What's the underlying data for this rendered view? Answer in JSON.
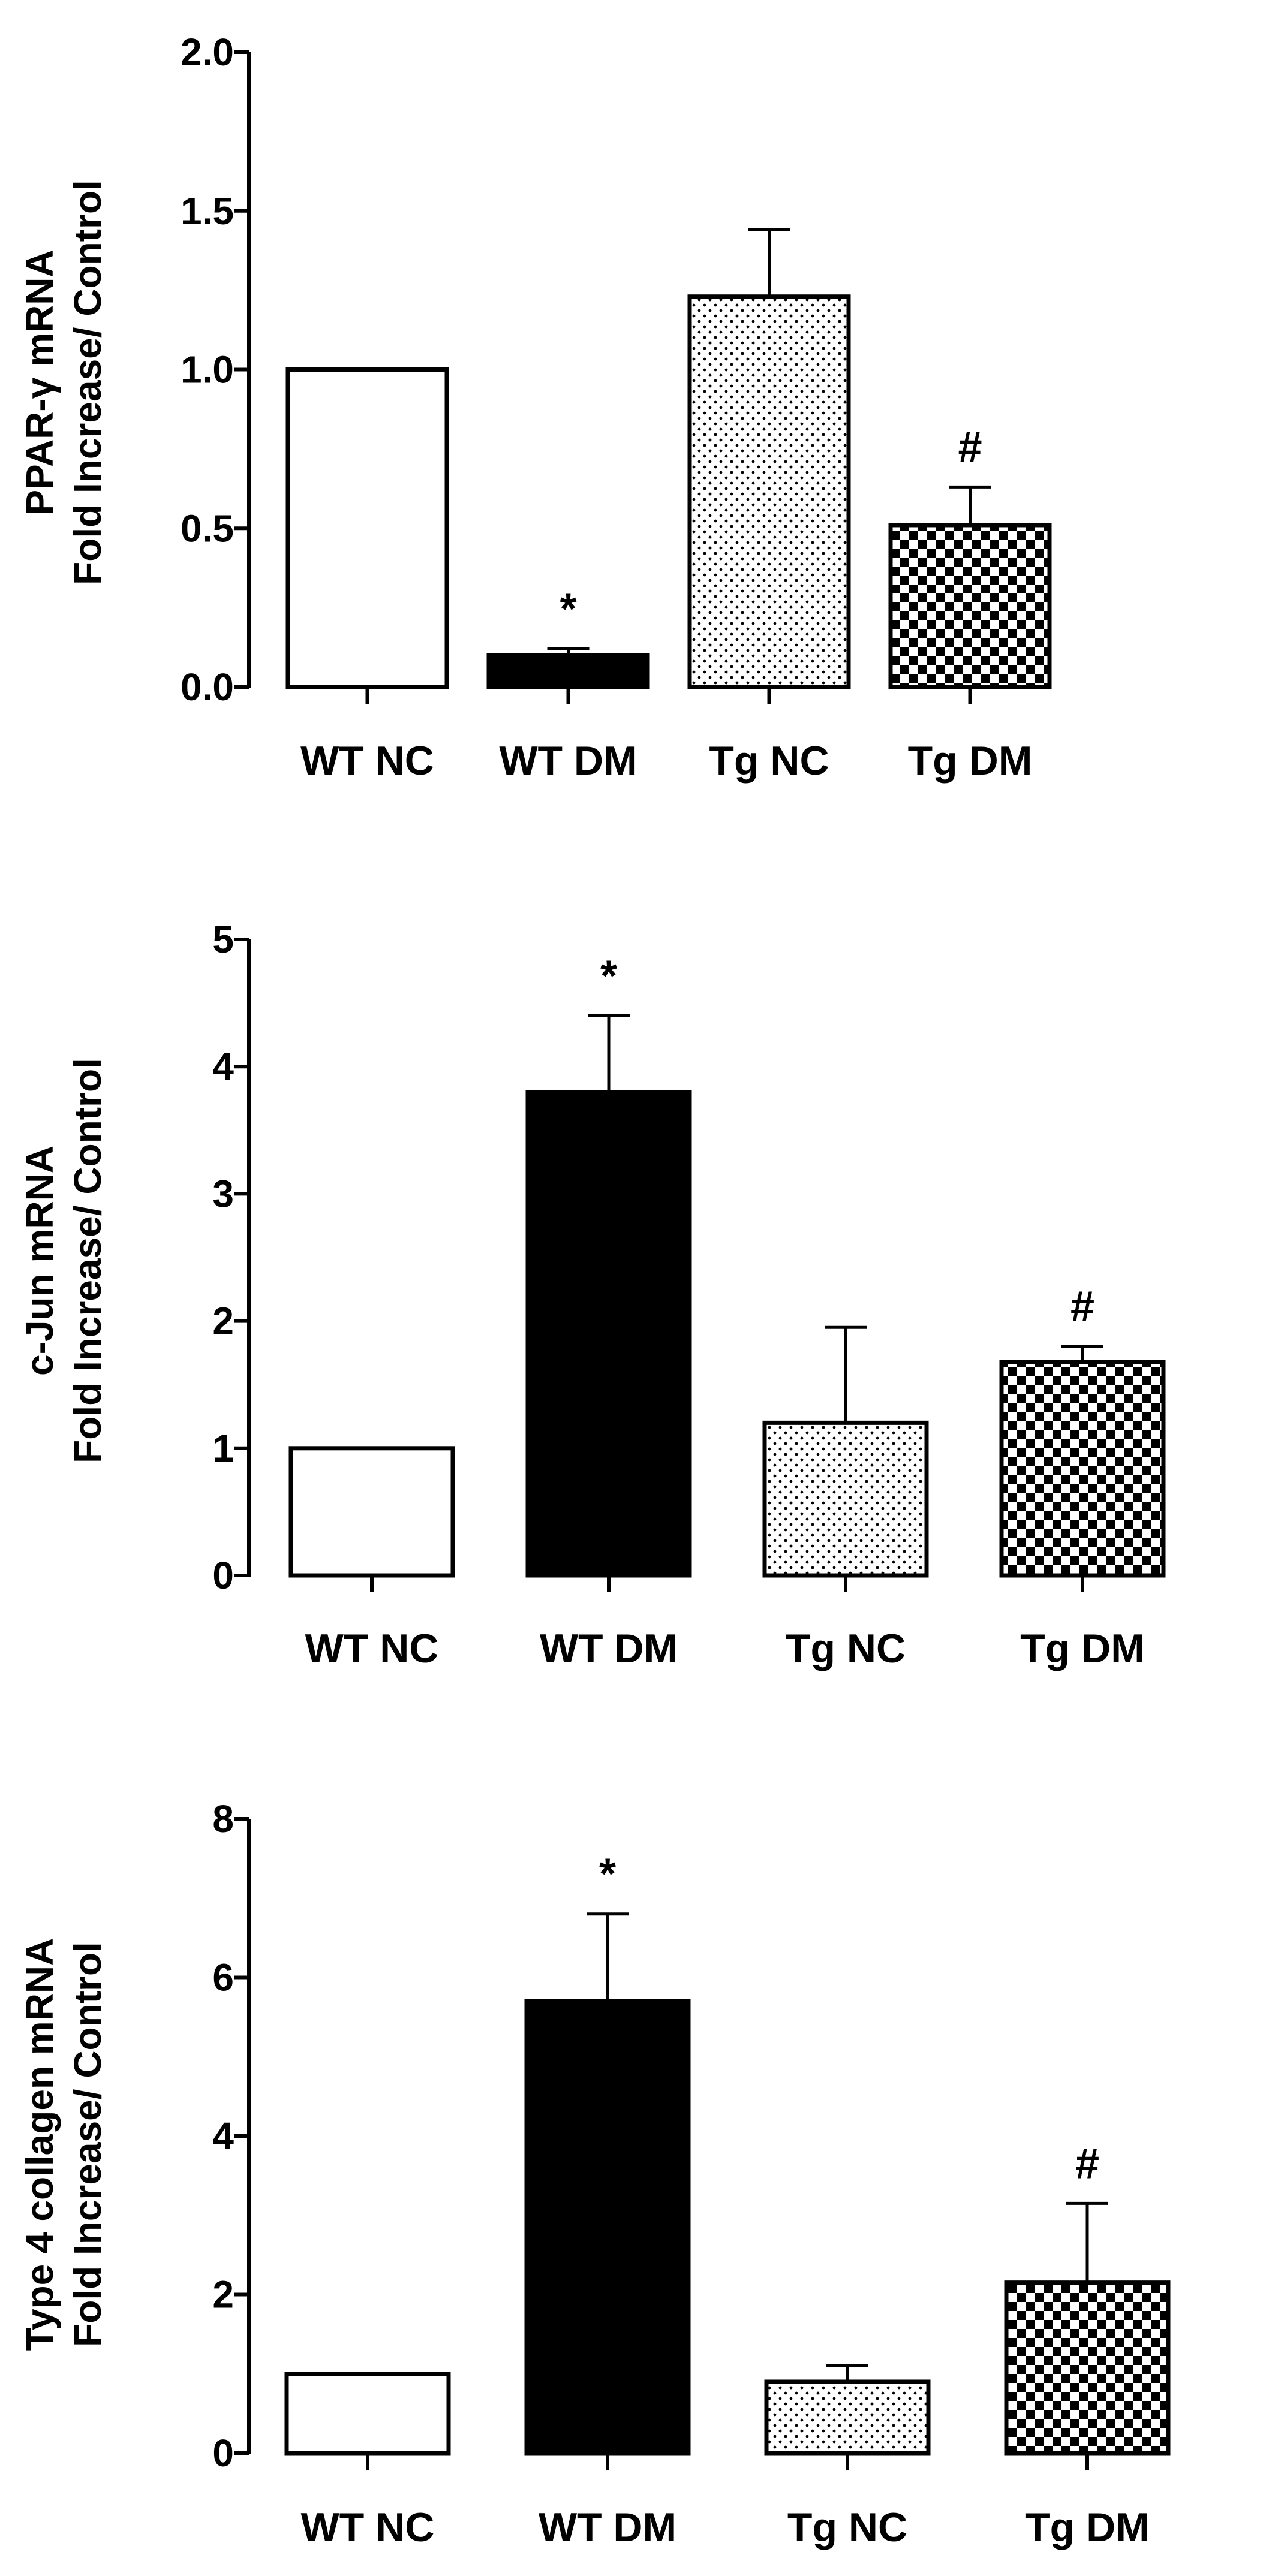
{
  "colors": {
    "ink": "#000000",
    "paper": "#ffffff"
  },
  "patterns": {
    "WT NC": "open",
    "WT DM": "solid",
    "Tg NC": "dots",
    "Tg DM": "checker"
  },
  "chart_data": [
    {
      "type": "bar",
      "ylabel_line1": "PPAR-γ mRNA",
      "ylabel_line2": "Fold Increase/ Control",
      "categories": [
        "WT NC",
        "WT DM",
        "Tg NC",
        "Tg DM"
      ],
      "values": [
        1.0,
        0.1,
        1.23,
        0.51
      ],
      "errors": [
        0,
        0.02,
        0.21,
        0.12
      ],
      "annotations": [
        "",
        "*",
        "",
        "#"
      ],
      "ylim": [
        0,
        2.0
      ],
      "yticks": [
        0.0,
        0.5,
        1.0,
        1.5,
        2.0
      ],
      "ytick_labels": [
        "0.0",
        "0.5",
        "1.0",
        "1.5",
        "2.0"
      ]
    },
    {
      "type": "bar",
      "ylabel_line1": "c-Jun mRNA",
      "ylabel_line2": "Fold Increase/ Control",
      "categories": [
        "WT NC",
        "WT DM",
        "Tg NC",
        "Tg DM"
      ],
      "values": [
        1.0,
        3.8,
        1.2,
        1.68
      ],
      "errors": [
        0,
        0.6,
        0.75,
        0.12
      ],
      "annotations": [
        "",
        "*",
        "",
        "#"
      ],
      "ylim": [
        0,
        5
      ],
      "yticks": [
        0,
        1,
        2,
        3,
        4,
        5
      ],
      "ytick_labels": [
        "0",
        "1",
        "2",
        "3",
        "4",
        "5"
      ]
    },
    {
      "type": "bar",
      "ylabel_line1": "Type 4 collagen mRNA",
      "ylabel_line2": "Fold Increase/ Control",
      "categories": [
        "WT NC",
        "WT DM",
        "Tg NC",
        "Tg DM"
      ],
      "values": [
        1.0,
        5.7,
        0.9,
        2.15
      ],
      "errors": [
        0,
        1.1,
        0.2,
        1.0
      ],
      "annotations": [
        "",
        "*",
        "",
        "#"
      ],
      "ylim": [
        0,
        8
      ],
      "yticks": [
        0,
        2,
        4,
        6,
        8
      ],
      "ytick_labels": [
        "0",
        "2",
        "4",
        "6",
        "8"
      ]
    }
  ]
}
